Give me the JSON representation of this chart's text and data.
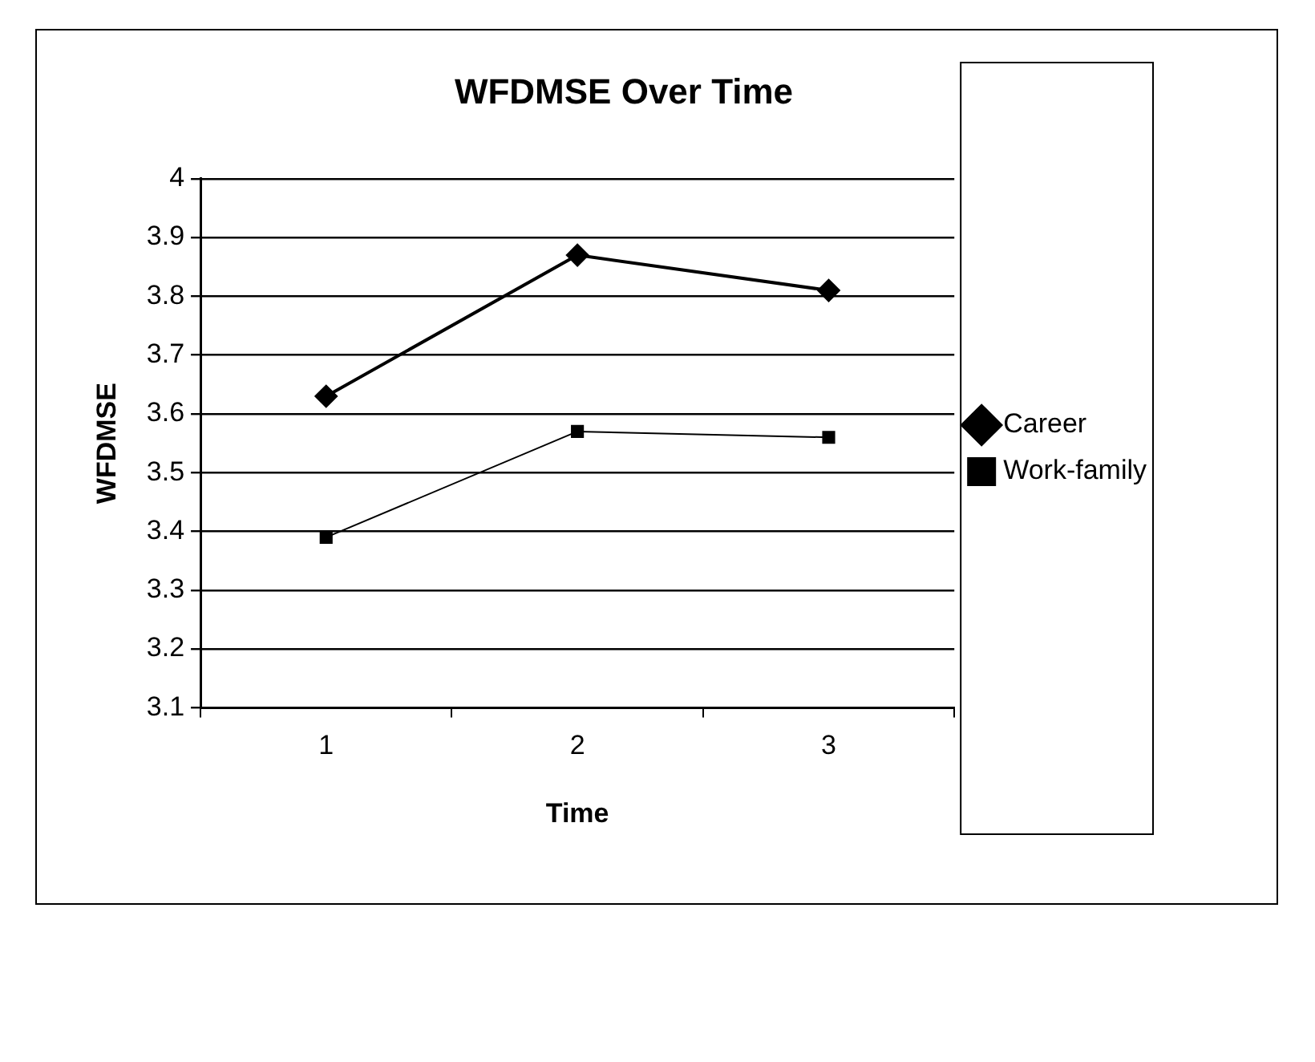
{
  "chart_data": {
    "type": "line",
    "title": "WFDMSE Over Time",
    "xlabel": "Time",
    "ylabel": "WFDMSE",
    "categories": [
      "1",
      "2",
      "3"
    ],
    "series": [
      {
        "name": "Career",
        "color": "#000000",
        "marker": "diamond",
        "values": [
          3.63,
          3.87,
          3.81
        ]
      },
      {
        "name": "Work-family",
        "color": "#000000",
        "marker": "square",
        "values": [
          3.39,
          3.57,
          3.56
        ]
      }
    ],
    "ylim": [
      3.1,
      4
    ],
    "yticks": [
      3.1,
      3.2,
      3.3,
      3.4,
      3.5,
      3.6,
      3.7,
      3.8,
      3.9,
      4
    ],
    "grid": "y",
    "legend": "right",
    "line_style": "solid"
  }
}
